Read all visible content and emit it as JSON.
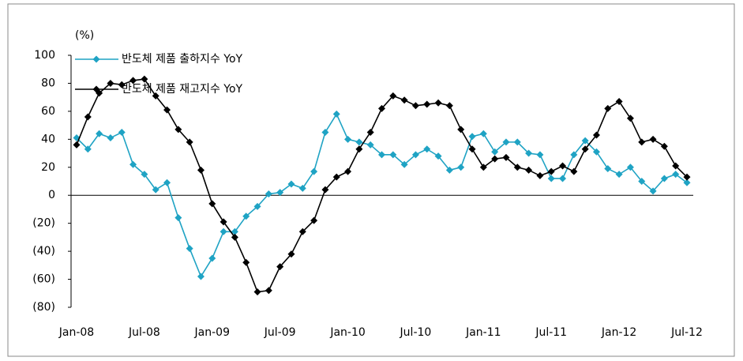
{
  "chart_data": {
    "type": "line",
    "y_unit": "(%)",
    "categories": [
      "Jan-08",
      null,
      null,
      null,
      null,
      null,
      "Jul-08",
      null,
      null,
      null,
      null,
      null,
      "Jan-09",
      null,
      null,
      null,
      null,
      null,
      "Jul-09",
      null,
      null,
      null,
      null,
      null,
      "Jan-10",
      null,
      null,
      null,
      null,
      null,
      "Jul-10",
      null,
      null,
      null,
      null,
      null,
      "Jan-11",
      null,
      null,
      null,
      null,
      null,
      "Jul-11",
      null,
      null,
      null,
      null,
      null,
      "Jan-12",
      null,
      null,
      null,
      null,
      null,
      "Jul-12"
    ],
    "series": [
      {
        "name": "반도체 제품 출하지수 YoY",
        "color": "#1fa3c4",
        "values": [
          41,
          33,
          44,
          41,
          45,
          22,
          15,
          4,
          9,
          -16,
          -38,
          -58,
          -45,
          -26,
          -26,
          -15,
          -8,
          1,
          2,
          8,
          5,
          17,
          45,
          58,
          40,
          38,
          36,
          29,
          29,
          22,
          29,
          33,
          28,
          18,
          20,
          42,
          44,
          31,
          38,
          38,
          30,
          29,
          12,
          12,
          29,
          39,
          31,
          19,
          15,
          20,
          10,
          3,
          12,
          15,
          9
        ]
      },
      {
        "name": "반도체 제품 재고지수 YoY",
        "color": "#000000",
        "values": [
          36,
          56,
          73,
          80,
          79,
          82,
          83,
          71,
          61,
          47,
          38,
          18,
          -6,
          -19,
          -30,
          -48,
          -69,
          -68,
          -51,
          -42,
          -26,
          -18,
          4,
          13,
          17,
          33,
          45,
          62,
          71,
          68,
          64,
          65,
          66,
          64,
          47,
          33,
          20,
          26,
          27,
          20,
          18,
          14,
          17,
          21,
          17,
          33,
          43,
          62,
          67,
          55,
          38,
          40,
          35,
          21,
          13
        ]
      }
    ],
    "ylim": [
      -80,
      100
    ],
    "yticks": [
      {
        "value": -80,
        "label": "(80)"
      },
      {
        "value": -60,
        "label": "(60)"
      },
      {
        "value": -40,
        "label": "(40)"
      },
      {
        "value": -20,
        "label": "(20)"
      },
      0,
      20,
      40,
      60,
      80,
      100
    ],
    "grid": false
  }
}
